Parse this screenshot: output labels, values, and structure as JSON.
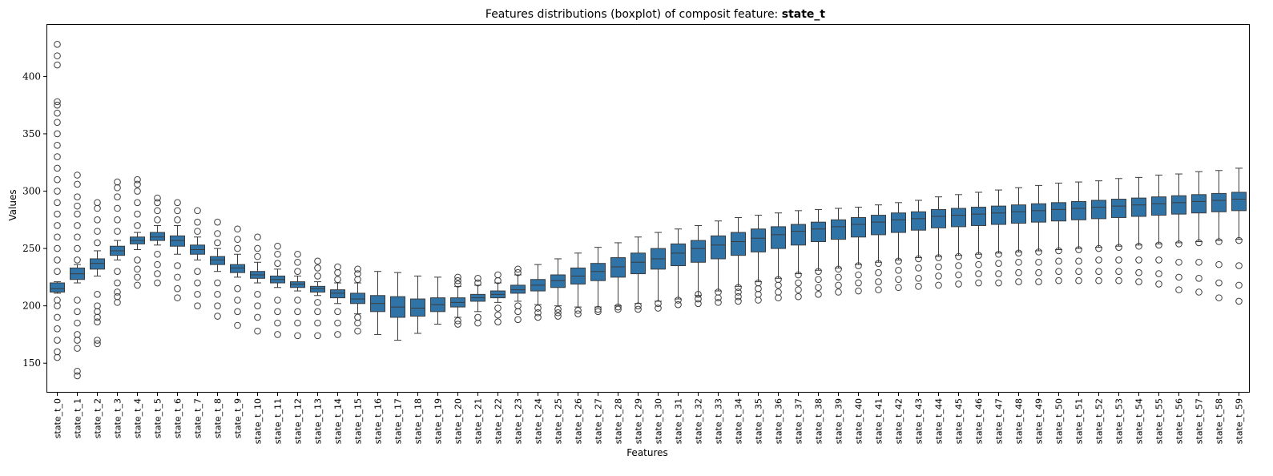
{
  "chart_data": {
    "type": "boxplot",
    "title": "Features distributions (boxplot) of composit feature:",
    "title_emphasis": "state_t",
    "xlabel": "Features",
    "ylabel": "Values",
    "ylim": [
      125,
      445
    ],
    "yticks": [
      150,
      200,
      250,
      300,
      350,
      400
    ],
    "grid": false,
    "legend": "none",
    "box_color": "#2f73a7",
    "line_color": "#3c3c3c",
    "categories": [
      "state_t_0",
      "state_t_1",
      "state_t_2",
      "state_t_3",
      "state_t_4",
      "state_t_5",
      "state_t_6",
      "state_t_7",
      "state_t_8",
      "state_t_9",
      "state_t_10",
      "state_t_11",
      "state_t_12",
      "state_t_13",
      "state_t_14",
      "state_t_15",
      "state_t_16",
      "state_t_17",
      "state_t_18",
      "state_t_19",
      "state_t_20",
      "state_t_21",
      "state_t_22",
      "state_t_23",
      "state_t_24",
      "state_t_25",
      "state_t_26",
      "state_t_27",
      "state_t_28",
      "state_t_29",
      "state_t_30",
      "state_t_31",
      "state_t_32",
      "state_t_33",
      "state_t_34",
      "state_t_35",
      "state_t_36",
      "state_t_37",
      "state_t_38",
      "state_t_39",
      "state_t_40",
      "state_t_41",
      "state_t_42",
      "state_t_43",
      "state_t_44",
      "state_t_45",
      "state_t_46",
      "state_t_47",
      "state_t_48",
      "state_t_49",
      "state_t_50",
      "state_t_51",
      "state_t_52",
      "state_t_53",
      "state_t_54",
      "state_t_55",
      "state_t_56",
      "state_t_57",
      "state_t_58",
      "state_t_59"
    ],
    "boxes": [
      {
        "q1": 212,
        "median": 215,
        "q3": 220,
        "whisker_low": 211,
        "whisker_high": 221,
        "outliers": [
          155,
          160,
          170,
          180,
          190,
          200,
          205,
          230,
          240,
          250,
          260,
          270,
          280,
          290,
          300,
          310,
          320,
          330,
          340,
          350,
          360,
          368,
          375,
          378,
          410,
          418,
          428
        ]
      },
      {
        "q1": 223,
        "median": 228,
        "q3": 233,
        "whisker_low": 220,
        "whisker_high": 236,
        "outliers": [
          139,
          143,
          163,
          170,
          175,
          185,
          195,
          205,
          240,
          250,
          260,
          270,
          280,
          287,
          295,
          306,
          314
        ]
      },
      {
        "q1": 232,
        "median": 237,
        "q3": 241,
        "whisker_low": 226,
        "whisker_high": 248,
        "outliers": [
          167,
          170,
          186,
          190,
          195,
          200,
          210,
          255,
          265,
          275,
          285,
          290
        ]
      },
      {
        "q1": 244,
        "median": 248,
        "q3": 252,
        "whisker_low": 240,
        "whisker_high": 257,
        "outliers": [
          203,
          208,
          212,
          220,
          230,
          265,
          275,
          285,
          295,
          303,
          308
        ]
      },
      {
        "q1": 254,
        "median": 257,
        "q3": 260,
        "whisker_low": 249,
        "whisker_high": 264,
        "outliers": [
          218,
          225,
          232,
          240,
          270,
          280,
          290,
          300,
          306,
          310
        ]
      },
      {
        "q1": 257,
        "median": 260,
        "q3": 264,
        "whisker_low": 253,
        "whisker_high": 270,
        "outliers": [
          220,
          228,
          236,
          245,
          275,
          283,
          290,
          294
        ]
      },
      {
        "q1": 252,
        "median": 257,
        "q3": 261,
        "whisker_low": 245,
        "whisker_high": 270,
        "outliers": [
          207,
          215,
          225,
          235,
          275,
          283,
          290
        ]
      },
      {
        "q1": 245,
        "median": 249,
        "q3": 253,
        "whisker_low": 240,
        "whisker_high": 260,
        "outliers": [
          200,
          210,
          220,
          230,
          265,
          273,
          283
        ]
      },
      {
        "q1": 236,
        "median": 240,
        "q3": 243,
        "whisker_low": 230,
        "whisker_high": 250,
        "outliers": [
          191,
          200,
          210,
          220,
          255,
          263,
          273
        ]
      },
      {
        "q1": 229,
        "median": 233,
        "q3": 236,
        "whisker_low": 225,
        "whisker_high": 245,
        "outliers": [
          183,
          195,
          205,
          215,
          250,
          258,
          267
        ]
      },
      {
        "q1": 224,
        "median": 227,
        "q3": 230,
        "whisker_low": 220,
        "whisker_high": 238,
        "outliers": [
          178,
          190,
          200,
          210,
          243,
          250,
          260
        ]
      },
      {
        "q1": 220,
        "median": 223,
        "q3": 226,
        "whisker_low": 216,
        "whisker_high": 232,
        "outliers": [
          175,
          185,
          195,
          205,
          237,
          245,
          252
        ]
      },
      {
        "q1": 216,
        "median": 219,
        "q3": 221,
        "whisker_low": 213,
        "whisker_high": 226,
        "outliers": [
          174,
          185,
          195,
          205,
          230,
          238,
          245
        ]
      },
      {
        "q1": 212,
        "median": 215,
        "q3": 217,
        "whisker_low": 209,
        "whisker_high": 221,
        "outliers": [
          174,
          185,
          195,
          203,
          226,
          233,
          239
        ]
      },
      {
        "q1": 207,
        "median": 211,
        "q3": 214,
        "whisker_low": 202,
        "whisker_high": 220,
        "outliers": [
          175,
          185,
          195,
          223,
          229,
          234
        ]
      },
      {
        "q1": 202,
        "median": 206,
        "q3": 211,
        "whisker_low": 193,
        "whisker_high": 220,
        "outliers": [
          178,
          185,
          190,
          223,
          228,
          232
        ]
      },
      {
        "q1": 195,
        "median": 202,
        "q3": 209,
        "whisker_low": 175,
        "whisker_high": 230,
        "outliers": []
      },
      {
        "q1": 190,
        "median": 199,
        "q3": 208,
        "whisker_low": 170,
        "whisker_high": 229,
        "outliers": []
      },
      {
        "q1": 191,
        "median": 198,
        "q3": 206,
        "whisker_low": 176,
        "whisker_high": 226,
        "outliers": []
      },
      {
        "q1": 195,
        "median": 201,
        "q3": 207,
        "whisker_low": 184,
        "whisker_high": 225,
        "outliers": []
      },
      {
        "q1": 199,
        "median": 203,
        "q3": 207,
        "whisker_low": 190,
        "whisker_high": 217,
        "outliers": [
          184,
          187,
          219,
          222,
          225
        ]
      },
      {
        "q1": 204,
        "median": 207,
        "q3": 210,
        "whisker_low": 195,
        "whisker_high": 218,
        "outliers": [
          185,
          190,
          220,
          224
        ]
      },
      {
        "q1": 207,
        "median": 210,
        "q3": 213,
        "whisker_low": 203,
        "whisker_high": 220,
        "outliers": [
          186,
          192,
          198,
          222,
          227
        ]
      },
      {
        "q1": 211,
        "median": 214,
        "q3": 218,
        "whisker_low": 204,
        "whisker_high": 227,
        "outliers": [
          188,
          195,
          200,
          229,
          232
        ]
      },
      {
        "q1": 213,
        "median": 218,
        "q3": 223,
        "whisker_low": 201,
        "whisker_high": 236,
        "outliers": [
          190,
          194,
          198
        ]
      },
      {
        "q1": 216,
        "median": 222,
        "q3": 227,
        "whisker_low": 200,
        "whisker_high": 241,
        "outliers": [
          191,
          194,
          197
        ]
      },
      {
        "q1": 219,
        "median": 226,
        "q3": 233,
        "whisker_low": 199,
        "whisker_high": 246,
        "outliers": [
          193,
          196
        ]
      },
      {
        "q1": 222,
        "median": 230,
        "q3": 237,
        "whisker_low": 199,
        "whisker_high": 251,
        "outliers": [
          195,
          197
        ]
      },
      {
        "q1": 225,
        "median": 234,
        "q3": 242,
        "whisker_low": 200,
        "whisker_high": 255,
        "outliers": [
          197,
          199
        ]
      },
      {
        "q1": 228,
        "median": 238,
        "q3": 246,
        "whisker_low": 202,
        "whisker_high": 260,
        "outliers": [
          197,
          200
        ]
      },
      {
        "q1": 232,
        "median": 241,
        "q3": 250,
        "whisker_low": 204,
        "whisker_high": 264,
        "outliers": [
          198,
          202
        ]
      },
      {
        "q1": 235,
        "median": 246,
        "q3": 254,
        "whisker_low": 206,
        "whisker_high": 267,
        "outliers": [
          201,
          205
        ]
      },
      {
        "q1": 238,
        "median": 250,
        "q3": 257,
        "whisker_low": 209,
        "whisker_high": 270,
        "outliers": [
          202,
          206,
          210
        ]
      },
      {
        "q1": 241,
        "median": 253,
        "q3": 261,
        "whisker_low": 213,
        "whisker_high": 274,
        "outliers": [
          203,
          207,
          212
        ]
      },
      {
        "q1": 244,
        "median": 256,
        "q3": 264,
        "whisker_low": 217,
        "whisker_high": 277,
        "outliers": [
          204,
          208,
          212,
          216
        ]
      },
      {
        "q1": 247,
        "median": 259,
        "q3": 267,
        "whisker_low": 221,
        "whisker_high": 279,
        "outliers": [
          205,
          210,
          215,
          220
        ]
      },
      {
        "q1": 250,
        "median": 262,
        "q3": 269,
        "whisker_low": 224,
        "whisker_high": 281,
        "outliers": [
          207,
          212,
          218,
          223
        ]
      },
      {
        "q1": 253,
        "median": 265,
        "q3": 271,
        "whisker_low": 228,
        "whisker_high": 283,
        "outliers": [
          208,
          214,
          220,
          227
        ]
      },
      {
        "q1": 256,
        "median": 267,
        "q3": 273,
        "whisker_low": 231,
        "whisker_high": 284,
        "outliers": [
          210,
          216,
          223,
          230
        ]
      },
      {
        "q1": 258,
        "median": 269,
        "q3": 275,
        "whisker_low": 233,
        "whisker_high": 285,
        "outliers": [
          212,
          218,
          225,
          232
        ]
      },
      {
        "q1": 260,
        "median": 271,
        "q3": 277,
        "whisker_low": 236,
        "whisker_high": 286,
        "outliers": [
          213,
          220,
          227,
          235
        ]
      },
      {
        "q1": 262,
        "median": 273,
        "q3": 279,
        "whisker_low": 238,
        "whisker_high": 288,
        "outliers": [
          214,
          221,
          229,
          237
        ]
      },
      {
        "q1": 264,
        "median": 275,
        "q3": 281,
        "whisker_low": 240,
        "whisker_high": 290,
        "outliers": [
          216,
          223,
          231,
          239
        ]
      },
      {
        "q1": 266,
        "median": 276,
        "q3": 282,
        "whisker_low": 242,
        "whisker_high": 292,
        "outliers": [
          217,
          224,
          233,
          241
        ]
      },
      {
        "q1": 268,
        "median": 278,
        "q3": 284,
        "whisker_low": 243,
        "whisker_high": 295,
        "outliers": [
          218,
          226,
          234,
          242
        ]
      },
      {
        "q1": 269,
        "median": 279,
        "q3": 285,
        "whisker_low": 244,
        "whisker_high": 297,
        "outliers": [
          219,
          227,
          235,
          243
        ]
      },
      {
        "q1": 270,
        "median": 280,
        "q3": 286,
        "whisker_low": 245,
        "whisker_high": 299,
        "outliers": [
          220,
          228,
          236,
          244
        ]
      },
      {
        "q1": 271,
        "median": 281,
        "q3": 287,
        "whisker_low": 246,
        "whisker_high": 301,
        "outliers": [
          220,
          228,
          237,
          245
        ]
      },
      {
        "q1": 272,
        "median": 282,
        "q3": 288,
        "whisker_low": 247,
        "whisker_high": 303,
        "outliers": [
          221,
          229,
          238,
          246
        ]
      },
      {
        "q1": 273,
        "median": 283,
        "q3": 289,
        "whisker_low": 248,
        "whisker_high": 305,
        "outliers": [
          221,
          229,
          238,
          247
        ]
      },
      {
        "q1": 274,
        "median": 284,
        "q3": 290,
        "whisker_low": 249,
        "whisker_high": 307,
        "outliers": [
          222,
          230,
          239,
          248
        ]
      },
      {
        "q1": 275,
        "median": 285,
        "q3": 291,
        "whisker_low": 250,
        "whisker_high": 308,
        "outliers": [
          222,
          230,
          239,
          249
        ]
      },
      {
        "q1": 276,
        "median": 286,
        "q3": 292,
        "whisker_low": 251,
        "whisker_high": 309,
        "outliers": [
          222,
          230,
          240,
          250
        ]
      },
      {
        "q1": 277,
        "median": 287,
        "q3": 293,
        "whisker_low": 252,
        "whisker_high": 311,
        "outliers": [
          222,
          230,
          240,
          251
        ]
      },
      {
        "q1": 278,
        "median": 288,
        "q3": 294,
        "whisker_low": 253,
        "whisker_high": 312,
        "outliers": [
          221,
          229,
          240,
          252
        ]
      },
      {
        "q1": 279,
        "median": 289,
        "q3": 295,
        "whisker_low": 254,
        "whisker_high": 314,
        "outliers": [
          219,
          228,
          240,
          253
        ]
      },
      {
        "q1": 280,
        "median": 290,
        "q3": 296,
        "whisker_low": 255,
        "whisker_high": 315,
        "outliers": [
          214,
          225,
          238,
          254
        ]
      },
      {
        "q1": 281,
        "median": 291,
        "q3": 297,
        "whisker_low": 256,
        "whisker_high": 317,
        "outliers": [
          212,
          224,
          238,
          255
        ]
      },
      {
        "q1": 282,
        "median": 292,
        "q3": 298,
        "whisker_low": 257,
        "whisker_high": 318,
        "outliers": [
          207,
          220,
          236,
          256
        ]
      },
      {
        "q1": 283,
        "median": 293,
        "q3": 299,
        "whisker_low": 258,
        "whisker_high": 320,
        "outliers": [
          204,
          218,
          235,
          257
        ]
      }
    ]
  }
}
